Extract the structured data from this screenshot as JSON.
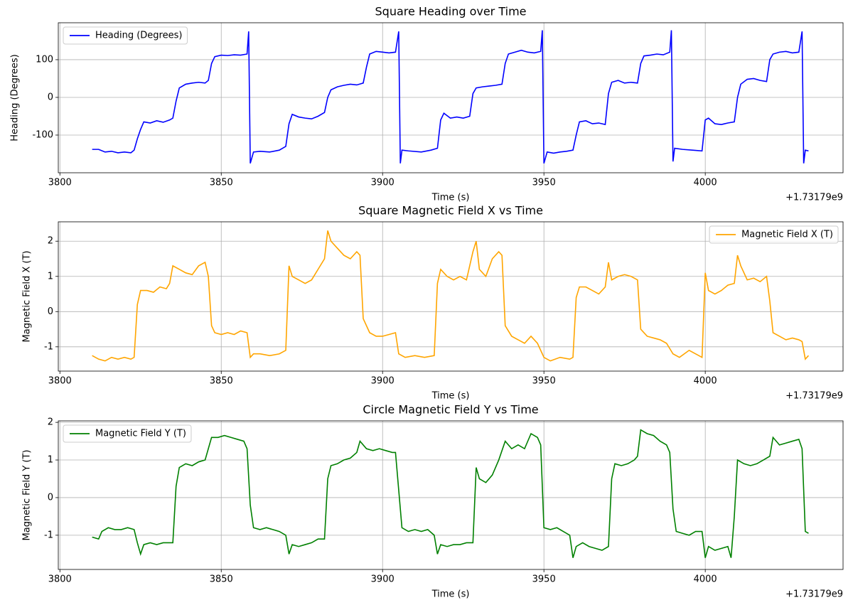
{
  "chart_data": [
    {
      "type": "line",
      "title": "Square Heading over Time",
      "xlabel": "Time (s)",
      "ylabel": "Heading (Degrees)",
      "x_offset_label": "+1.73179e9",
      "x": [
        3810,
        3812,
        3814,
        3816,
        3818,
        3820,
        3822,
        3823,
        3824,
        3825,
        3826,
        3828,
        3830,
        3832,
        3834,
        3835,
        3836,
        3837,
        3839,
        3841,
        3843,
        3845,
        3846,
        3847,
        3848,
        3850,
        3852,
        3854,
        3856,
        3858,
        3858.5,
        3859,
        3860,
        3862,
        3865,
        3868,
        3870,
        3871,
        3872,
        3874,
        3876,
        3878,
        3880,
        3882,
        3883,
        3884,
        3886,
        3888,
        3890,
        3892,
        3894,
        3895,
        3896,
        3898,
        3900,
        3902,
        3904,
        3905,
        3905.5,
        3906,
        3908,
        3912,
        3915,
        3917,
        3918,
        3919,
        3921,
        3923,
        3925,
        3927,
        3928,
        3929,
        3931,
        3933,
        3935,
        3937,
        3938,
        3939,
        3941,
        3943,
        3945,
        3947,
        3949,
        3949.5,
        3950,
        3951,
        3953,
        3955,
        3957,
        3959,
        3960,
        3961,
        3963,
        3965,
        3967,
        3969,
        3970,
        3971,
        3973,
        3975,
        3977,
        3979,
        3980,
        3981,
        3983,
        3985,
        3987,
        3989,
        3989.5,
        3990,
        3990.5,
        3993,
        3996,
        3999,
        4000,
        4001,
        4003,
        4005,
        4007,
        4009,
        4010,
        4011,
        4013,
        4015,
        4017,
        4019,
        4020,
        4021,
        4023,
        4025,
        4027,
        4029,
        4030,
        4030.5,
        4031,
        4032
      ],
      "series": [
        {
          "name": "Heading (Degrees)",
          "color": "#0000ff",
          "values": [
            -138,
            -138,
            -145,
            -143,
            -147,
            -145,
            -147,
            -140,
            -110,
            -85,
            -65,
            -68,
            -62,
            -66,
            -60,
            -55,
            -10,
            25,
            35,
            38,
            40,
            38,
            45,
            90,
            108,
            112,
            111,
            113,
            112,
            115,
            175,
            -175,
            -145,
            -143,
            -145,
            -140,
            -130,
            -70,
            -45,
            -52,
            -55,
            -57,
            -50,
            -40,
            0,
            20,
            28,
            32,
            35,
            33,
            38,
            80,
            115,
            122,
            120,
            118,
            120,
            175,
            -175,
            -140,
            -142,
            -145,
            -140,
            -135,
            -60,
            -42,
            -55,
            -52,
            -55,
            -50,
            10,
            25,
            28,
            30,
            32,
            35,
            90,
            115,
            120,
            125,
            120,
            118,
            122,
            178,
            -175,
            -145,
            -148,
            -145,
            -143,
            -140,
            -100,
            -65,
            -62,
            -70,
            -68,
            -72,
            10,
            40,
            45,
            38,
            40,
            38,
            90,
            110,
            112,
            115,
            113,
            120,
            178,
            -170,
            -135,
            -138,
            -140,
            -142,
            -60,
            -55,
            -70,
            -72,
            -68,
            -65,
            0,
            35,
            48,
            50,
            45,
            42,
            100,
            115,
            120,
            122,
            118,
            120,
            175,
            -175,
            -140,
            -142
          ]
        }
      ],
      "xlim": [
        3799.5,
        4042.7
      ],
      "ylim": [
        -200,
        198
      ],
      "xticks": [
        3800,
        3850,
        3900,
        3950,
        4000
      ],
      "yticks": [
        -100,
        0,
        100
      ],
      "grid": true,
      "legend": "upper left"
    },
    {
      "type": "line",
      "title": "Square Magnetic Field X vs Time",
      "xlabel": "Time (s)",
      "ylabel": "Magnetic Field X (T)",
      "x_offset_label": "+1.73179e9",
      "x": [
        3810,
        3812,
        3814,
        3816,
        3818,
        3820,
        3822,
        3823,
        3824,
        3825,
        3827,
        3829,
        3831,
        3833,
        3834,
        3835,
        3837,
        3839,
        3841,
        3843,
        3845,
        3846,
        3847,
        3848,
        3850,
        3852,
        3854,
        3856,
        3858,
        3859,
        3860,
        3862,
        3865,
        3868,
        3870,
        3871,
        3872,
        3874,
        3876,
        3878,
        3880,
        3882,
        3883,
        3884,
        3886,
        3888,
        3890,
        3892,
        3893,
        3894,
        3896,
        3898,
        3900,
        3902,
        3904,
        3905,
        3907,
        3910,
        3913,
        3916,
        3917,
        3918,
        3920,
        3922,
        3924,
        3926,
        3928,
        3929,
        3930,
        3932,
        3934,
        3936,
        3937,
        3938,
        3940,
        3942,
        3944,
        3946,
        3948,
        3950,
        3952,
        3955,
        3958,
        3959,
        3960,
        3961,
        3963,
        3965,
        3967,
        3969,
        3970,
        3971,
        3973,
        3975,
        3977,
        3979,
        3980,
        3982,
        3984,
        3986,
        3988,
        3990,
        3992,
        3995,
        3998,
        3999,
        4000,
        4001,
        4003,
        4005,
        4007,
        4009,
        4010,
        4011,
        4013,
        4015,
        4017,
        4019,
        4020,
        4021,
        4023,
        4025,
        4027,
        4029,
        4030,
        4031,
        4032
      ],
      "series": [
        {
          "name": "Magnetic Field X (T)",
          "color": "#ffa500",
          "values": [
            -1.25,
            -1.35,
            -1.4,
            -1.3,
            -1.35,
            -1.3,
            -1.35,
            -1.3,
            0.2,
            0.6,
            0.6,
            0.55,
            0.7,
            0.65,
            0.8,
            1.3,
            1.2,
            1.1,
            1.05,
            1.3,
            1.4,
            1.0,
            -0.4,
            -0.6,
            -0.65,
            -0.6,
            -0.65,
            -0.55,
            -0.6,
            -1.3,
            -1.2,
            -1.2,
            -1.25,
            -1.2,
            -1.1,
            1.3,
            1.0,
            0.9,
            0.8,
            0.9,
            1.2,
            1.5,
            2.3,
            2.0,
            1.8,
            1.6,
            1.5,
            1.7,
            1.6,
            -0.2,
            -0.6,
            -0.7,
            -0.7,
            -0.65,
            -0.6,
            -1.2,
            -1.3,
            -1.25,
            -1.3,
            -1.25,
            0.8,
            1.2,
            1.0,
            0.9,
            1.0,
            0.9,
            1.7,
            2.0,
            1.2,
            1.0,
            1.5,
            1.7,
            1.6,
            -0.4,
            -0.7,
            -0.8,
            -0.9,
            -0.7,
            -0.9,
            -1.3,
            -1.4,
            -1.3,
            -1.35,
            -1.3,
            0.4,
            0.7,
            0.7,
            0.6,
            0.5,
            0.7,
            1.4,
            0.9,
            1.0,
            1.05,
            1.0,
            0.9,
            -0.5,
            -0.7,
            -0.75,
            -0.8,
            -0.9,
            -1.2,
            -1.3,
            -1.1,
            -1.25,
            -1.3,
            1.1,
            0.6,
            0.5,
            0.6,
            0.75,
            0.8,
            1.6,
            1.3,
            0.9,
            0.95,
            0.85,
            1.0,
            0.3,
            -0.6,
            -0.7,
            -0.8,
            -0.75,
            -0.8,
            -0.85,
            -1.35,
            -1.25
          ]
        }
      ],
      "xlim": [
        3799.5,
        4042.7
      ],
      "ylim": [
        -1.69,
        2.55
      ],
      "xticks": [
        3800,
        3850,
        3900,
        3950,
        4000
      ],
      "yticks": [
        -1,
        0,
        1,
        2
      ],
      "grid": true,
      "legend": "upper right"
    },
    {
      "type": "line",
      "title": "Circle Magnetic Field Y vs Time",
      "xlabel": "Time (s)",
      "ylabel": "Magnetic Field Y (T)",
      "x_offset_label": "+1.73179e9",
      "x": [
        3810,
        3812,
        3813,
        3815,
        3817,
        3819,
        3821,
        3823,
        3824,
        3825,
        3826,
        3828,
        3830,
        3832,
        3834,
        3835,
        3836,
        3837,
        3839,
        3841,
        3843,
        3845,
        3846,
        3847,
        3849,
        3851,
        3853,
        3855,
        3857,
        3858,
        3859,
        3860,
        3862,
        3864,
        3866,
        3868,
        3870,
        3871,
        3872,
        3874,
        3876,
        3878,
        3880,
        3882,
        3883,
        3884,
        3886,
        3888,
        3890,
        3892,
        3893,
        3895,
        3897,
        3899,
        3901,
        3903,
        3904,
        3905,
        3906,
        3908,
        3910,
        3912,
        3914,
        3916,
        3917,
        3918,
        3920,
        3922,
        3924,
        3926,
        3928,
        3929,
        3930,
        3932,
        3934,
        3936,
        3938,
        3940,
        3942,
        3944,
        3946,
        3948,
        3949,
        3950,
        3952,
        3954,
        3956,
        3958,
        3959,
        3960,
        3962,
        3964,
        3966,
        3968,
        3970,
        3971,
        3972,
        3974,
        3976,
        3978,
        3979,
        3980,
        3982,
        3984,
        3986,
        3988,
        3989,
        3990,
        3991,
        3993,
        3995,
        3997,
        3999,
        4000,
        4001,
        4003,
        4005,
        4007,
        4008,
        4009,
        4010,
        4012,
        4014,
        4016,
        4018,
        4020,
        4021,
        4023,
        4025,
        4027,
        4029,
        4030,
        4031,
        4032
      ],
      "series": [
        {
          "name": "Magnetic Field Y (T)",
          "color": "#008000",
          "values": [
            -1.05,
            -1.1,
            -0.9,
            -0.8,
            -0.85,
            -0.85,
            -0.8,
            -0.85,
            -1.2,
            -1.5,
            -1.25,
            -1.2,
            -1.25,
            -1.2,
            -1.2,
            -1.2,
            0.3,
            0.8,
            0.9,
            0.85,
            0.95,
            1.0,
            1.3,
            1.6,
            1.6,
            1.65,
            1.6,
            1.55,
            1.5,
            1.3,
            -0.2,
            -0.8,
            -0.85,
            -0.8,
            -0.85,
            -0.9,
            -1.0,
            -1.5,
            -1.25,
            -1.3,
            -1.25,
            -1.2,
            -1.1,
            -1.1,
            0.5,
            0.85,
            0.9,
            1.0,
            1.05,
            1.2,
            1.5,
            1.3,
            1.25,
            1.3,
            1.25,
            1.2,
            1.2,
            0.2,
            -0.8,
            -0.9,
            -0.85,
            -0.9,
            -0.85,
            -1.0,
            -1.5,
            -1.25,
            -1.3,
            -1.25,
            -1.25,
            -1.2,
            -1.2,
            0.8,
            0.5,
            0.4,
            0.6,
            1.0,
            1.5,
            1.3,
            1.4,
            1.3,
            1.7,
            1.6,
            1.4,
            -0.8,
            -0.85,
            -0.8,
            -0.9,
            -1.0,
            -1.6,
            -1.3,
            -1.2,
            -1.3,
            -1.35,
            -1.4,
            -1.3,
            0.5,
            0.9,
            0.85,
            0.9,
            1.0,
            1.1,
            1.8,
            1.7,
            1.65,
            1.5,
            1.4,
            1.2,
            -0.3,
            -0.9,
            -0.95,
            -1.0,
            -0.9,
            -0.9,
            -1.6,
            -1.3,
            -1.4,
            -1.35,
            -1.3,
            -1.6,
            -0.5,
            1.0,
            0.9,
            0.85,
            0.9,
            1.0,
            1.1,
            1.6,
            1.4,
            1.45,
            1.5,
            1.55,
            1.3,
            -0.9,
            -0.95
          ]
        }
      ],
      "xlim": [
        3799.5,
        4042.7
      ],
      "ylim": [
        -1.91,
        2.04
      ],
      "xticks": [
        3800,
        3850,
        3900,
        3950,
        4000
      ],
      "yticks": [
        -1,
        0,
        1,
        2
      ],
      "grid": true,
      "legend": "upper left"
    }
  ]
}
